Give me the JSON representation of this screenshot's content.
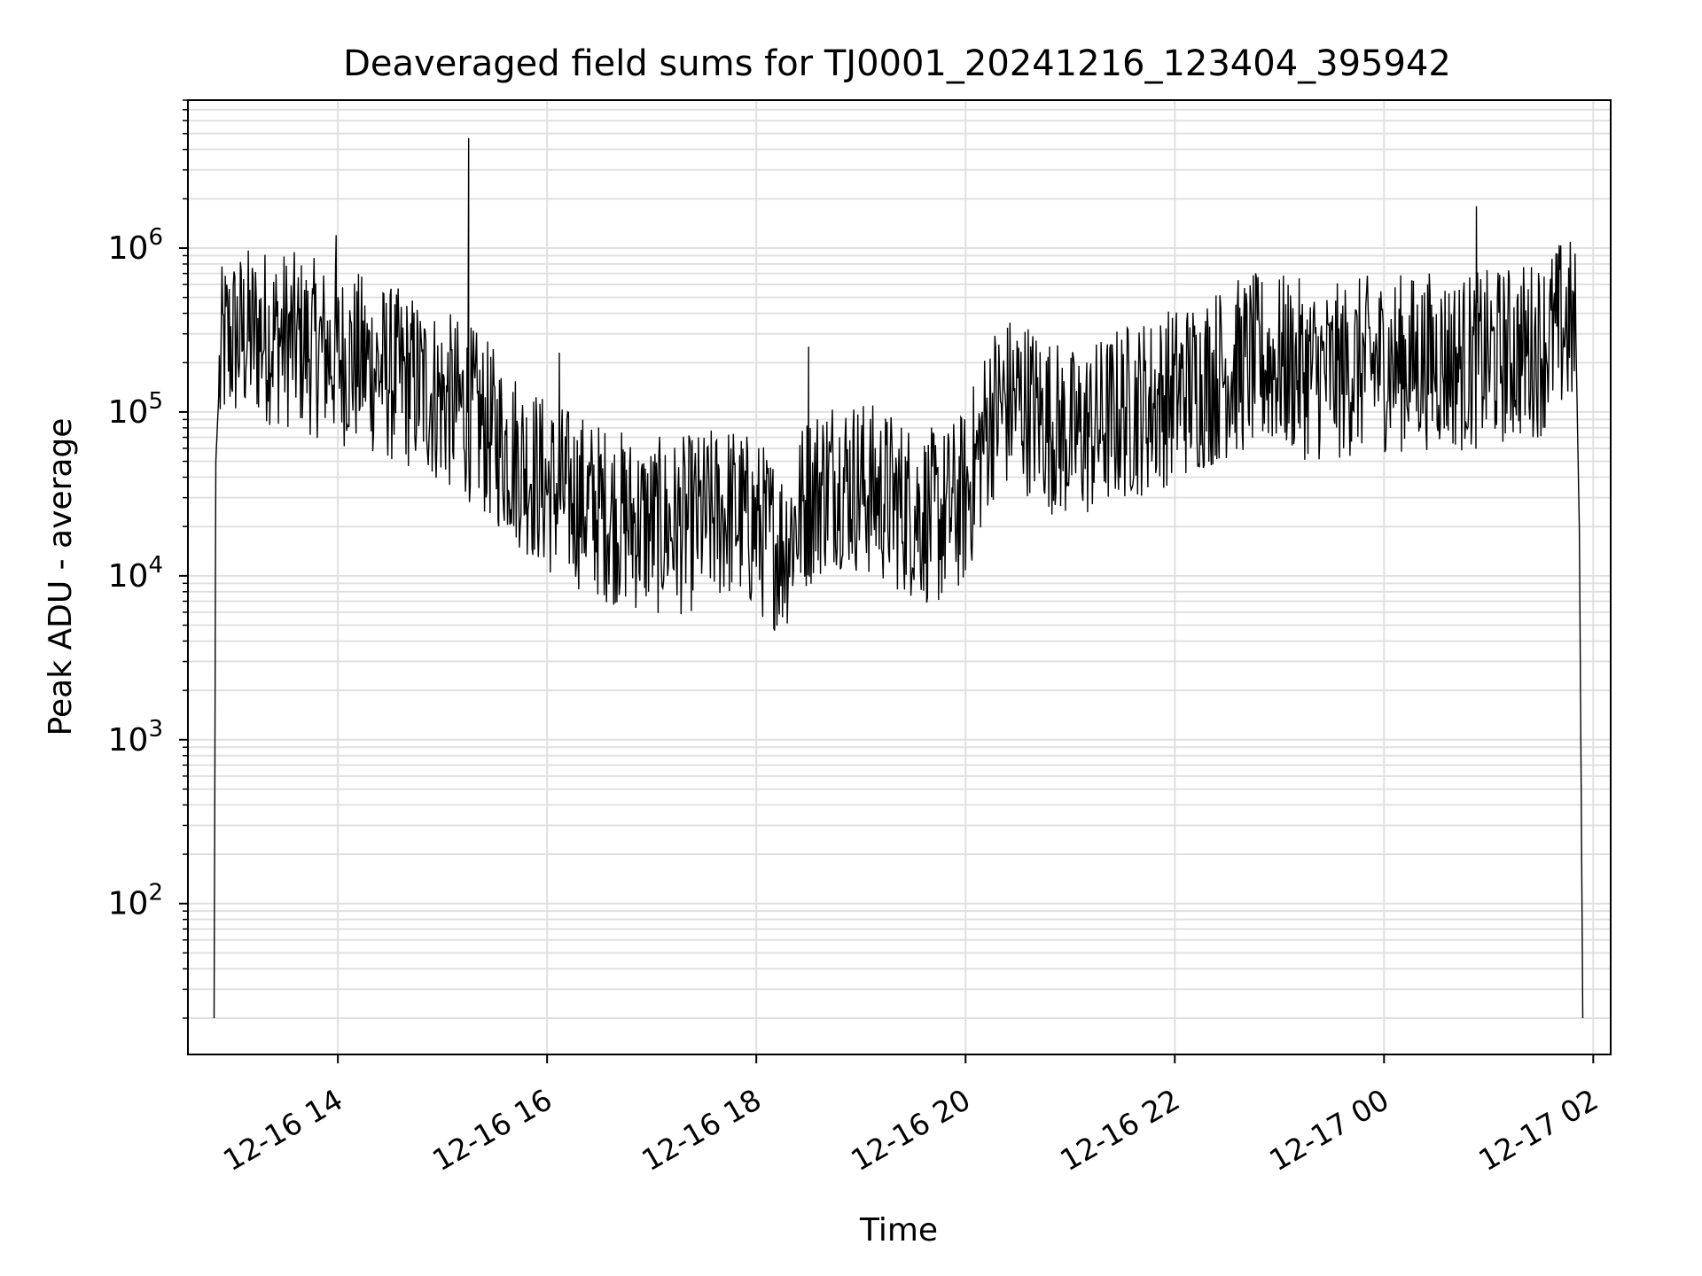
{
  "chart_data": {
    "type": "line",
    "title": "Deaveraged field sums for TJ0001_20241216_123404_395942",
    "xlabel": "Time",
    "ylabel": "Peak ADU - average",
    "yscale": "log",
    "grid": true,
    "x_tick_labels": [
      "12-16 14",
      "12-16 16",
      "12-16 18",
      "12-16 20",
      "12-16 22",
      "12-17 00",
      "12-17 02"
    ],
    "y_tick_labels": [
      {
        "base": "10",
        "exp": "2"
      },
      {
        "base": "10",
        "exp": "3"
      },
      {
        "base": "10",
        "exp": "4"
      },
      {
        "base": "10",
        "exp": "5"
      },
      {
        "base": "10",
        "exp": "6"
      }
    ],
    "xlim": [
      "2024-12-16 12:34",
      "2024-12-17 02:10"
    ],
    "ylim": [
      12,
      8000000
    ],
    "line_color": "#000000",
    "grid_color": "#e0e0e0",
    "series": [
      {
        "x": [
          "2024-12-16 12:49",
          "2024-12-16 12:50",
          "2024-12-16 12:52",
          "2024-12-16 12:54",
          "2024-12-16 13:00",
          "2024-12-16 13:15",
          "2024-12-16 13:30",
          "2024-12-16 13:45",
          "2024-12-16 14:00",
          "2024-12-16 14:15",
          "2024-12-16 14:30",
          "2024-12-16 14:45",
          "2024-12-16 15:00",
          "2024-12-16 15:15",
          "2024-12-16 15:30",
          "2024-12-16 15:45",
          "2024-12-16 16:00",
          "2024-12-16 16:15",
          "2024-12-16 16:30",
          "2024-12-16 16:45",
          "2024-12-16 17:00",
          "2024-12-16 17:15",
          "2024-12-16 17:30",
          "2024-12-16 17:45",
          "2024-12-16 18:00",
          "2024-12-16 18:15",
          "2024-12-16 18:30",
          "2024-12-16 18:45",
          "2024-12-16 19:00",
          "2024-12-16 19:15",
          "2024-12-16 19:30",
          "2024-12-16 19:45",
          "2024-12-16 20:00",
          "2024-12-16 20:15",
          "2024-12-16 20:30",
          "2024-12-16 20:45",
          "2024-12-16 21:00",
          "2024-12-16 21:15",
          "2024-12-16 21:30",
          "2024-12-16 21:45",
          "2024-12-16 22:00",
          "2024-12-16 22:15",
          "2024-12-16 22:30",
          "2024-12-16 22:45",
          "2024-12-16 23:00",
          "2024-12-16 23:15",
          "2024-12-16 23:30",
          "2024-12-16 23:45",
          "2024-12-17 00:00",
          "2024-12-17 00:15",
          "2024-12-17 00:30",
          "2024-12-17 00:45",
          "2024-12-17 01:00",
          "2024-12-17 01:15",
          "2024-12-17 01:30",
          "2024-12-17 01:45",
          "2024-12-17 01:50",
          "2024-12-17 01:52",
          "2024-12-17 01:54"
        ],
        "y": [
          20,
          50000,
          150000,
          250000,
          280000,
          300000,
          280000,
          250000,
          220000,
          200000,
          170000,
          150000,
          120000,
          100000,
          70000,
          50000,
          35000,
          30000,
          25000,
          22000,
          20000,
          20000,
          22000,
          25000,
          20000,
          15000,
          30000,
          40000,
          35000,
          30000,
          25000,
          22000,
          30000,
          100000,
          120000,
          90000,
          70000,
          80000,
          100000,
          110000,
          130000,
          150000,
          180000,
          200000,
          200000,
          180000,
          170000,
          190000,
          200000,
          200000,
          210000,
          200000,
          210000,
          230000,
          250000,
          350000,
          300000,
          20000,
          20
        ]
      }
    ],
    "spikes": [
      {
        "x": "2024-12-16 13:59",
        "y": 1200000
      },
      {
        "x": "2024-12-16 15:15",
        "y": 4700000
      },
      {
        "x": "2024-12-16 16:07",
        "y": 230000
      },
      {
        "x": "2024-12-16 18:30",
        "y": 250000
      },
      {
        "x": "2024-12-17 00:53",
        "y": 1800000
      }
    ]
  }
}
